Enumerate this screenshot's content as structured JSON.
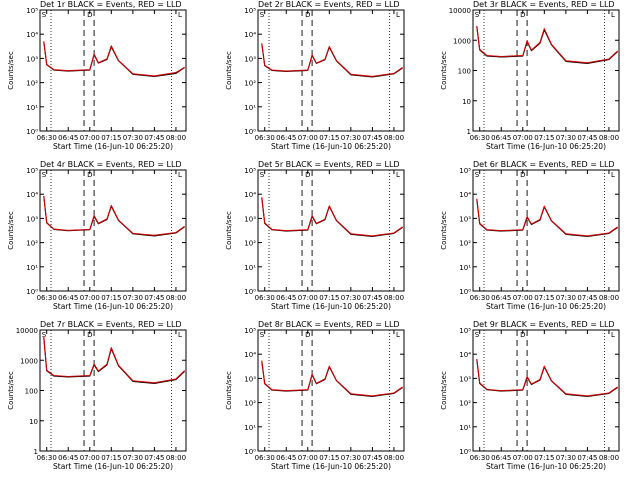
{
  "chart_data": [
    {
      "type": "line",
      "title": "Det 1r BLACK = Events, RED = LLD",
      "xlabel": "Start Time (16-Jun-10 06:25:20)",
      "ylabel": "Counts/sec",
      "x_ticks": [
        "06:30",
        "06:45",
        "07:00",
        "07:15",
        "07:30",
        "07:45",
        "08:00"
      ],
      "yscale": "log",
      "y_ticks": [
        "10⁰",
        "10¹",
        "10²",
        "10³",
        "10⁴",
        "10⁵"
      ],
      "ylim": [
        1,
        100000
      ],
      "flag_labels": [
        "S",
        "D",
        "L"
      ],
      "series": [
        {
          "name": "Events",
          "color": "#000000",
          "x": [
            "06:28",
            "06:30",
            "06:35",
            "06:45",
            "07:00",
            "07:03",
            "07:06",
            "07:12",
            "07:15",
            "07:20",
            "07:30",
            "07:45",
            "08:00",
            "08:06"
          ],
          "y": [
            5000,
            550,
            330,
            300,
            330,
            1400,
            640,
            900,
            3000,
            800,
            220,
            180,
            240,
            420
          ]
        },
        {
          "name": "LLD",
          "color": "#cc0000",
          "x": [
            "06:28",
            "06:30",
            "06:35",
            "06:45",
            "07:00",
            "07:03",
            "07:06",
            "07:12",
            "07:15",
            "07:20",
            "07:30",
            "07:45",
            "08:00",
            "08:06"
          ],
          "y": [
            5000,
            560,
            340,
            310,
            340,
            1500,
            660,
            950,
            3300,
            820,
            230,
            190,
            260,
            430
          ]
        }
      ]
    },
    {
      "type": "line",
      "title": "Det 2r BLACK = Events, RED = LLD",
      "xlabel": "Start Time (16-Jun-10 06:25:20)",
      "ylabel": "Counts/sec",
      "x_ticks": [
        "06:30",
        "06:45",
        "07:00",
        "07:15",
        "07:30",
        "07:45",
        "08:00"
      ],
      "yscale": "log",
      "y_ticks": [
        "10⁰",
        "10¹",
        "10²",
        "10³",
        "10⁴",
        "10⁵"
      ],
      "ylim": [
        1,
        100000
      ],
      "flag_labels": [
        "S",
        "D",
        "L"
      ],
      "series": [
        {
          "name": "Events",
          "color": "#000000",
          "x": [
            "06:28",
            "06:30",
            "06:35",
            "06:45",
            "07:00",
            "07:03",
            "07:06",
            "07:12",
            "07:15",
            "07:20",
            "07:30",
            "07:45",
            "08:00",
            "08:06"
          ],
          "y": [
            4000,
            500,
            320,
            290,
            320,
            1300,
            620,
            880,
            2900,
            780,
            210,
            170,
            230,
            400
          ]
        },
        {
          "name": "LLD",
          "color": "#cc0000",
          "x": [
            "06:28",
            "06:30",
            "06:35",
            "06:45",
            "07:00",
            "07:03",
            "07:06",
            "07:12",
            "07:15",
            "07:20",
            "07:30",
            "07:45",
            "08:00",
            "08:06"
          ],
          "y": [
            4200,
            520,
            330,
            300,
            330,
            1400,
            640,
            920,
            3100,
            800,
            220,
            180,
            240,
            420
          ]
        }
      ]
    },
    {
      "type": "line",
      "title": "Det 3r BLACK = Events, RED = LLD",
      "xlabel": "Start Time (16-Jun-10 06:25:20)",
      "ylabel": "Counts/sec",
      "x_ticks": [
        "06:30",
        "06:45",
        "07:00",
        "07:15",
        "07:30",
        "07:45",
        "08:00"
      ],
      "yscale": "log",
      "y_ticks": [
        "1",
        "10",
        "100",
        "1000",
        "10000"
      ],
      "ylim": [
        1,
        10000
      ],
      "flag_labels": [
        "S",
        "D",
        "L"
      ],
      "series": [
        {
          "name": "Events",
          "color": "#000000",
          "x": [
            "06:28",
            "06:30",
            "06:35",
            "06:45",
            "07:00",
            "07:03",
            "07:06",
            "07:12",
            "07:15",
            "07:20",
            "07:30",
            "07:45",
            "08:00",
            "08:06"
          ],
          "y": [
            2800,
            480,
            300,
            280,
            300,
            900,
            450,
            800,
            2200,
            700,
            200,
            170,
            230,
            420
          ]
        },
        {
          "name": "LLD",
          "color": "#cc0000",
          "x": [
            "06:28",
            "06:30",
            "06:35",
            "06:45",
            "07:00",
            "07:03",
            "07:06",
            "07:12",
            "07:15",
            "07:20",
            "07:30",
            "07:45",
            "08:00",
            "08:06"
          ],
          "y": [
            3000,
            500,
            310,
            290,
            310,
            950,
            470,
            850,
            2400,
            730,
            210,
            180,
            240,
            440
          ]
        }
      ]
    },
    {
      "type": "line",
      "title": "Det 4r BLACK = Events, RED = LLD",
      "xlabel": "Start Time (16-Jun-10 06:25:20)",
      "ylabel": "Counts/sec",
      "x_ticks": [
        "06:30",
        "06:45",
        "07:00",
        "07:15",
        "07:30",
        "07:45",
        "08:00"
      ],
      "yscale": "log",
      "y_ticks": [
        "10⁰",
        "10¹",
        "10²",
        "10³",
        "10⁴",
        "10⁵"
      ],
      "ylim": [
        1,
        100000
      ],
      "flag_labels": [
        "S",
        "D",
        "L"
      ],
      "series": [
        {
          "name": "Events",
          "color": "#000000",
          "x": [
            "06:28",
            "06:30",
            "06:35",
            "06:45",
            "07:00",
            "07:03",
            "07:06",
            "07:12",
            "07:15",
            "07:20",
            "07:30",
            "07:45",
            "08:00",
            "08:06"
          ],
          "y": [
            8000,
            650,
            350,
            310,
            340,
            1200,
            600,
            900,
            3200,
            820,
            230,
            190,
            250,
            450
          ]
        },
        {
          "name": "LLD",
          "color": "#cc0000",
          "x": [
            "06:28",
            "06:30",
            "06:35",
            "06:45",
            "07:00",
            "07:03",
            "07:06",
            "07:12",
            "07:15",
            "07:20",
            "07:30",
            "07:45",
            "08:00",
            "08:06"
          ],
          "y": [
            8500,
            680,
            360,
            320,
            350,
            1300,
            620,
            950,
            3400,
            850,
            240,
            200,
            260,
            470
          ]
        }
      ]
    },
    {
      "type": "line",
      "title": "Det 5r BLACK = Events, RED = LLD",
      "xlabel": "Start Time (16-Jun-10 06:25:20)",
      "ylabel": "Counts/sec",
      "x_ticks": [
        "06:30",
        "06:45",
        "07:00",
        "07:15",
        "07:30",
        "07:45",
        "08:00"
      ],
      "yscale": "log",
      "y_ticks": [
        "10⁰",
        "10¹",
        "10²",
        "10³",
        "10⁴",
        "10⁵"
      ],
      "ylim": [
        1,
        100000
      ],
      "flag_labels": [
        "S",
        "D",
        "L"
      ],
      "series": [
        {
          "name": "Events",
          "color": "#000000",
          "x": [
            "06:28",
            "06:30",
            "06:35",
            "06:45",
            "07:00",
            "07:03",
            "07:06",
            "07:12",
            "07:15",
            "07:20",
            "07:30",
            "07:45",
            "08:00",
            "08:06"
          ],
          "y": [
            7000,
            620,
            340,
            300,
            330,
            1200,
            600,
            880,
            3100,
            800,
            220,
            180,
            240,
            430
          ]
        },
        {
          "name": "LLD",
          "color": "#cc0000",
          "x": [
            "06:28",
            "06:30",
            "06:35",
            "06:45",
            "07:00",
            "07:03",
            "07:06",
            "07:12",
            "07:15",
            "07:20",
            "07:30",
            "07:45",
            "08:00",
            "08:06"
          ],
          "y": [
            7500,
            650,
            350,
            310,
            340,
            1300,
            620,
            930,
            3300,
            830,
            230,
            190,
            250,
            450
          ]
        }
      ]
    },
    {
      "type": "line",
      "title": "Det 6r BLACK = Events, RED = LLD",
      "xlabel": "Start Time (16-Jun-10 06:25:20)",
      "ylabel": "Counts/sec",
      "x_ticks": [
        "06:30",
        "06:45",
        "07:00",
        "07:15",
        "07:30",
        "07:45",
        "08:00"
      ],
      "yscale": "log",
      "y_ticks": [
        "10⁰",
        "10¹",
        "10²",
        "10³",
        "10⁴",
        "10⁵"
      ],
      "ylim": [
        1,
        100000
      ],
      "flag_labels": [
        "S",
        "D",
        "L"
      ],
      "series": [
        {
          "name": "Events",
          "color": "#000000",
          "x": [
            "06:28",
            "06:30",
            "06:35",
            "06:45",
            "07:00",
            "07:03",
            "07:06",
            "07:12",
            "07:15",
            "07:20",
            "07:30",
            "07:45",
            "08:00",
            "08:06"
          ],
          "y": [
            6000,
            600,
            330,
            300,
            330,
            1100,
            560,
            850,
            3000,
            780,
            220,
            180,
            240,
            420
          ]
        },
        {
          "name": "LLD",
          "color": "#cc0000",
          "x": [
            "06:28",
            "06:30",
            "06:35",
            "06:45",
            "07:00",
            "07:03",
            "07:06",
            "07:12",
            "07:15",
            "07:20",
            "07:30",
            "07:45",
            "08:00",
            "08:06"
          ],
          "y": [
            6500,
            630,
            340,
            310,
            340,
            1200,
            580,
            900,
            3200,
            800,
            230,
            190,
            250,
            440
          ]
        }
      ]
    },
    {
      "type": "line",
      "title": "Det 7r BLACK = Events, RED = LLD",
      "xlabel": "Start Time (16-Jun-10 06:25:20)",
      "ylabel": "Counts/sec",
      "x_ticks": [
        "06:30",
        "06:45",
        "07:00",
        "07:15",
        "07:30",
        "07:45",
        "08:00"
      ],
      "yscale": "log",
      "y_ticks": [
        "1",
        "10",
        "100",
        "1000",
        "10000"
      ],
      "ylim": [
        1,
        10000
      ],
      "flag_labels": [
        "S",
        "D",
        "L"
      ],
      "series": [
        {
          "name": "Events",
          "color": "#000000",
          "x": [
            "06:28",
            "06:30",
            "06:35",
            "06:45",
            "07:00",
            "07:03",
            "07:06",
            "07:12",
            "07:15",
            "07:20",
            "07:30",
            "07:45",
            "08:00",
            "08:06"
          ],
          "y": [
            5500,
            450,
            300,
            280,
            300,
            700,
            420,
            700,
            2400,
            650,
            200,
            170,
            230,
            430
          ]
        },
        {
          "name": "LLD",
          "color": "#cc0000",
          "x": [
            "06:28",
            "06:30",
            "06:35",
            "06:45",
            "07:00",
            "07:03",
            "07:06",
            "07:12",
            "07:15",
            "07:20",
            "07:30",
            "07:45",
            "08:00",
            "08:06"
          ],
          "y": [
            6000,
            470,
            310,
            290,
            310,
            750,
            440,
            740,
            2600,
            680,
            210,
            180,
            240,
            450
          ]
        }
      ]
    },
    {
      "type": "line",
      "title": "Det 8r BLACK = Events, RED = LLD",
      "xlabel": "Start Time (16-Jun-10 06:25:20)",
      "ylabel": "Counts/sec",
      "x_ticks": [
        "06:30",
        "06:45",
        "07:00",
        "07:15",
        "07:30",
        "07:45",
        "08:00"
      ],
      "yscale": "log",
      "y_ticks": [
        "10⁰",
        "10¹",
        "10²",
        "10³",
        "10⁴",
        "10⁵"
      ],
      "ylim": [
        1,
        100000
      ],
      "flag_labels": [
        "S",
        "D",
        "L"
      ],
      "series": [
        {
          "name": "Events",
          "color": "#000000",
          "x": [
            "06:28",
            "06:30",
            "06:35",
            "06:45",
            "07:00",
            "07:03",
            "07:06",
            "07:12",
            "07:15",
            "07:20",
            "07:30",
            "07:45",
            "08:00",
            "08:06"
          ],
          "y": [
            5000,
            600,
            330,
            300,
            330,
            1400,
            600,
            900,
            3000,
            800,
            220,
            180,
            240,
            420
          ]
        },
        {
          "name": "LLD",
          "color": "#cc0000",
          "x": [
            "06:28",
            "06:30",
            "06:35",
            "06:45",
            "07:00",
            "07:03",
            "07:06",
            "07:12",
            "07:15",
            "07:20",
            "07:30",
            "07:45",
            "08:00",
            "08:06"
          ],
          "y": [
            5400,
            620,
            340,
            310,
            340,
            1500,
            620,
            950,
            3200,
            820,
            230,
            190,
            250,
            440
          ]
        }
      ]
    },
    {
      "type": "line",
      "title": "Det 9r BLACK = Events, RED = LLD",
      "xlabel": "Start Time (16-Jun-10 06:25:20)",
      "ylabel": "Counts/sec",
      "x_ticks": [
        "06:30",
        "06:45",
        "07:00",
        "07:15",
        "07:30",
        "07:45",
        "08:00"
      ],
      "yscale": "log",
      "y_ticks": [
        "10⁰",
        "10¹",
        "10²",
        "10³",
        "10⁴",
        "10⁵"
      ],
      "ylim": [
        1,
        100000
      ],
      "flag_labels": [
        "S",
        "D",
        "L"
      ],
      "series": [
        {
          "name": "Events",
          "color": "#000000",
          "x": [
            "06:28",
            "06:30",
            "06:35",
            "06:45",
            "07:00",
            "07:03",
            "07:06",
            "07:12",
            "07:15",
            "07:20",
            "07:30",
            "07:45",
            "08:00",
            "08:06"
          ],
          "y": [
            6000,
            620,
            340,
            300,
            330,
            1100,
            560,
            850,
            3000,
            780,
            220,
            180,
            240,
            420
          ]
        },
        {
          "name": "LLD",
          "color": "#cc0000",
          "x": [
            "06:28",
            "06:30",
            "06:35",
            "06:45",
            "07:00",
            "07:03",
            "07:06",
            "07:12",
            "07:15",
            "07:20",
            "07:30",
            "07:45",
            "08:00",
            "08:06"
          ],
          "y": [
            6400,
            650,
            350,
            310,
            340,
            1200,
            580,
            900,
            3200,
            800,
            230,
            190,
            250,
            440
          ]
        }
      ]
    }
  ],
  "markers": {
    "dotted_times": [
      "06:33",
      "07:57"
    ],
    "dashed_times": [
      "06:56",
      "07:03"
    ]
  }
}
